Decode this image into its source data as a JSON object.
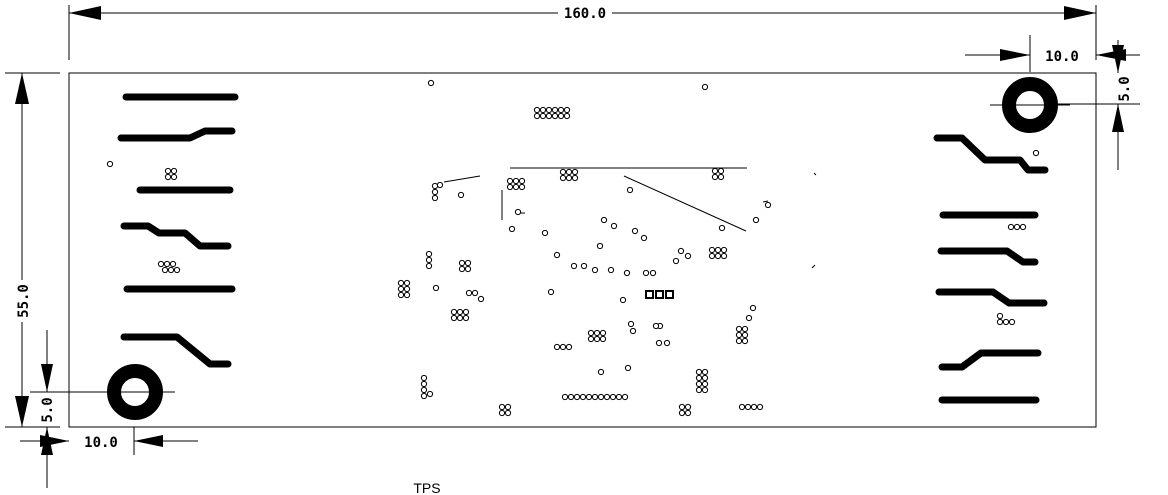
{
  "dimensions": {
    "width": "160.0",
    "height": "55.0",
    "hole_offset_x_top": "10.0",
    "hole_offset_y_top": "5.0",
    "hole_offset_x_bottom": "10.0",
    "hole_offset_y_bottom": "5.0"
  },
  "layer_label": "TPS",
  "colors": {
    "ink": "#000000",
    "background": "#ffffff"
  }
}
